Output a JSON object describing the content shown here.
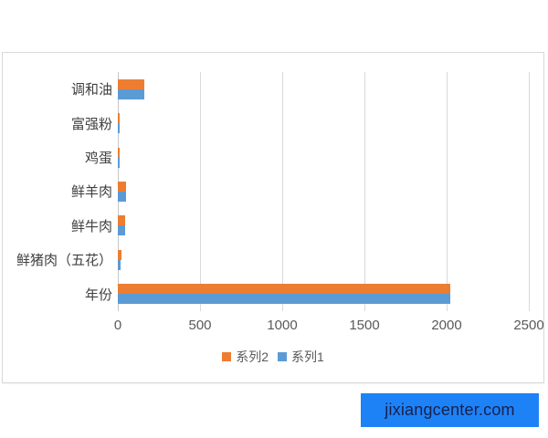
{
  "chart_data": {
    "type": "bar",
    "orientation": "horizontal",
    "title": "",
    "xlabel": "",
    "ylabel": "",
    "categories": [
      "调和油",
      "富强粉",
      "鸡蛋",
      "鲜羊肉",
      "鲜牛肉",
      "鲜猪肉（五花）",
      "年份"
    ],
    "series": [
      {
        "name": "系列2",
        "color": "#ed7d31",
        "values": [
          162,
          10,
          10,
          52,
          45,
          21,
          2021
        ]
      },
      {
        "name": "系列1",
        "color": "#5b9bd5",
        "values": [
          160,
          9,
          9,
          48,
          42,
          19,
          2020
        ]
      }
    ],
    "xlim": [
      0,
      2500
    ],
    "x_ticks": [
      0,
      500,
      1000,
      1500,
      2000,
      2500
    ],
    "grid": true,
    "legend_position": "bottom"
  },
  "colors": {
    "gridline": "#d9d9d9",
    "axis_line": "#c6c6c6",
    "category_text": "#404040",
    "tick_text": "#595959",
    "frame_border": "#d9d9d9",
    "watermark_bg": "#1e82f7",
    "watermark_text": "#16214d"
  },
  "watermark": {
    "text": "jixiangcenter.com"
  }
}
